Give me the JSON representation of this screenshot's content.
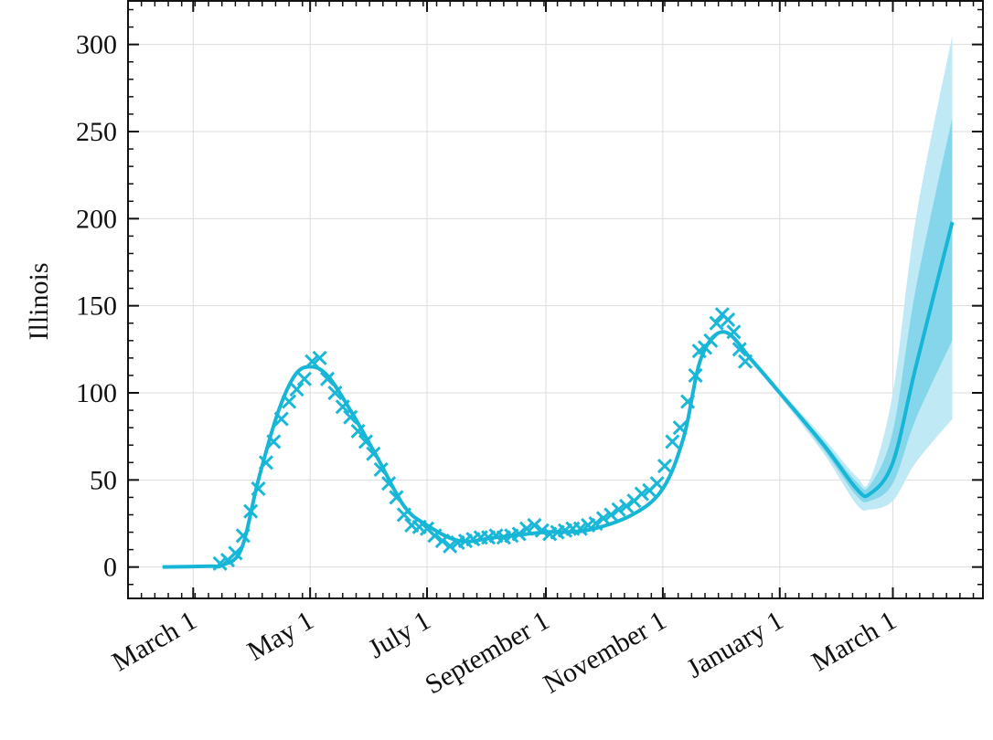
{
  "chart_data": {
    "type": "line",
    "title": "",
    "xlabel": "",
    "ylabel": "Illinois",
    "xlim": [
      "2020-01-27",
      "2021-04-17"
    ],
    "ylim": [
      -18,
      325
    ],
    "grid": true,
    "yticks": [
      0,
      50,
      100,
      150,
      200,
      250,
      300
    ],
    "xticks": [
      {
        "date": "2020-03-01",
        "label": "March 1"
      },
      {
        "date": "2020-05-01",
        "label": "May 1"
      },
      {
        "date": "2020-07-01",
        "label": "July 1"
      },
      {
        "date": "2020-09-01",
        "label": "September 1"
      },
      {
        "date": "2020-11-01",
        "label": "November 1"
      },
      {
        "date": "2021-01-01",
        "label": "January 1"
      },
      {
        "date": "2021-03-01",
        "label": "March 1"
      }
    ],
    "colors": {
      "line": "#17b5d6",
      "band_outer": "#bfe9f4",
      "band_inner": "#86d6eb",
      "marker": "#1ab8d8"
    },
    "fit": [
      [
        "2020-02-14",
        0
      ],
      [
        "2020-03-10",
        0.5
      ],
      [
        "2020-03-16",
        1
      ],
      [
        "2020-03-26",
        10
      ],
      [
        "2020-04-04",
        50
      ],
      [
        "2020-04-14",
        88
      ],
      [
        "2020-04-23",
        110
      ],
      [
        "2020-05-01",
        115
      ],
      [
        "2020-05-10",
        110
      ],
      [
        "2020-05-22",
        90
      ],
      [
        "2020-06-05",
        63
      ],
      [
        "2020-06-19",
        35
      ],
      [
        "2020-07-01",
        24
      ],
      [
        "2020-07-18",
        15
      ],
      [
        "2020-08-06",
        17
      ],
      [
        "2020-09-01",
        20
      ],
      [
        "2020-09-22",
        21
      ],
      [
        "2020-10-16",
        30
      ],
      [
        "2020-11-01",
        45
      ],
      [
        "2020-11-12",
        75
      ],
      [
        "2020-11-21",
        120
      ],
      [
        "2020-12-03",
        135
      ],
      [
        "2020-12-18",
        118
      ],
      [
        "2021-01-01",
        100
      ],
      [
        "2021-01-24",
        70
      ],
      [
        "2021-02-10",
        45
      ],
      [
        "2021-02-17",
        42
      ],
      [
        "2021-03-01",
        60
      ],
      [
        "2021-03-13",
        115
      ],
      [
        "2021-04-01",
        198
      ]
    ],
    "band_inner": [
      [
        "2020-12-18",
        117,
        119
      ],
      [
        "2021-01-01",
        99,
        101
      ],
      [
        "2021-01-24",
        67,
        72
      ],
      [
        "2021-02-10",
        41,
        49
      ],
      [
        "2021-02-17",
        38,
        47
      ],
      [
        "2021-03-01",
        48,
        78
      ],
      [
        "2021-03-13",
        85,
        160
      ],
      [
        "2021-04-01",
        130,
        258
      ]
    ],
    "band_outer": [
      [
        "2020-12-18",
        116,
        120
      ],
      [
        "2021-01-01",
        98,
        102
      ],
      [
        "2021-01-24",
        65,
        74
      ],
      [
        "2021-02-10",
        36,
        52
      ],
      [
        "2021-02-17",
        33,
        50
      ],
      [
        "2021-03-01",
        38,
        100
      ],
      [
        "2021-03-13",
        60,
        200
      ],
      [
        "2021-04-01",
        85,
        305
      ]
    ],
    "observed": [
      [
        "2020-03-15",
        2
      ],
      [
        "2020-03-19",
        4
      ],
      [
        "2020-03-23",
        8
      ],
      [
        "2020-03-27",
        18
      ],
      [
        "2020-03-31",
        32
      ],
      [
        "2020-04-04",
        45
      ],
      [
        "2020-04-08",
        60
      ],
      [
        "2020-04-12",
        72
      ],
      [
        "2020-04-16",
        85
      ],
      [
        "2020-04-20",
        95
      ],
      [
        "2020-04-24",
        102
      ],
      [
        "2020-04-28",
        108
      ],
      [
        "2020-05-02",
        118
      ],
      [
        "2020-05-06",
        120
      ],
      [
        "2020-05-10",
        108
      ],
      [
        "2020-05-14",
        100
      ],
      [
        "2020-05-18",
        92
      ],
      [
        "2020-05-22",
        86
      ],
      [
        "2020-05-26",
        78
      ],
      [
        "2020-05-30",
        72
      ],
      [
        "2020-06-03",
        65
      ],
      [
        "2020-06-07",
        56
      ],
      [
        "2020-06-11",
        48
      ],
      [
        "2020-06-15",
        40
      ],
      [
        "2020-06-19",
        30
      ],
      [
        "2020-06-23",
        24
      ],
      [
        "2020-06-27",
        23
      ],
      [
        "2020-07-01",
        22
      ],
      [
        "2020-07-05",
        18
      ],
      [
        "2020-07-09",
        15
      ],
      [
        "2020-07-13",
        12
      ],
      [
        "2020-07-17",
        14
      ],
      [
        "2020-07-21",
        15
      ],
      [
        "2020-07-25",
        16
      ],
      [
        "2020-07-29",
        17
      ],
      [
        "2020-08-02",
        17
      ],
      [
        "2020-08-06",
        18
      ],
      [
        "2020-08-10",
        17
      ],
      [
        "2020-08-14",
        18
      ],
      [
        "2020-08-18",
        19
      ],
      [
        "2020-08-22",
        22
      ],
      [
        "2020-08-26",
        24
      ],
      [
        "2020-08-30",
        21
      ],
      [
        "2020-09-03",
        19
      ],
      [
        "2020-09-07",
        20
      ],
      [
        "2020-09-11",
        21
      ],
      [
        "2020-09-15",
        22
      ],
      [
        "2020-09-19",
        22
      ],
      [
        "2020-09-23",
        24
      ],
      [
        "2020-09-27",
        25
      ],
      [
        "2020-10-01",
        28
      ],
      [
        "2020-10-05",
        30
      ],
      [
        "2020-10-09",
        33
      ],
      [
        "2020-10-13",
        35
      ],
      [
        "2020-10-17",
        38
      ],
      [
        "2020-10-21",
        42
      ],
      [
        "2020-10-25",
        44
      ],
      [
        "2020-10-29",
        48
      ],
      [
        "2020-11-02",
        58
      ],
      [
        "2020-11-06",
        72
      ],
      [
        "2020-11-10",
        80
      ],
      [
        "2020-11-14",
        95
      ],
      [
        "2020-11-18",
        110
      ],
      [
        "2020-11-20",
        124
      ],
      [
        "2020-11-23",
        126
      ],
      [
        "2020-11-26",
        130
      ],
      [
        "2020-11-29",
        140
      ],
      [
        "2020-12-02",
        145
      ],
      [
        "2020-12-05",
        142
      ],
      [
        "2020-12-08",
        135
      ],
      [
        "2020-12-11",
        125
      ],
      [
        "2020-12-14",
        118
      ]
    ]
  }
}
